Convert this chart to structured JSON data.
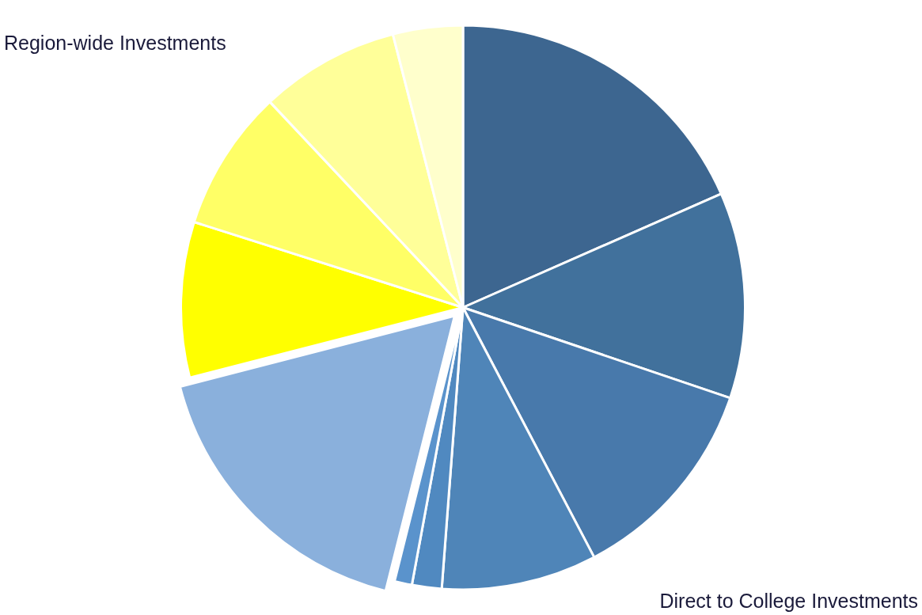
{
  "chart_data": {
    "type": "pie",
    "categories": [
      null,
      null,
      null,
      null,
      null,
      null,
      null,
      null,
      null,
      null,
      null
    ],
    "values": [
      18.4,
      11.8,
      12.1,
      8.9,
      1.7,
      1.0,
      17.1,
      8.9,
      8.1,
      8.0,
      4.0
    ],
    "colors": [
      "#3d6690",
      "#41719c",
      "#4879ab",
      "#4f85b8",
      "#5089c0",
      "#5a93cc",
      "#8ab0dc",
      "#ffff00",
      "#ffff66",
      "#ffff99",
      "#ffffcc"
    ],
    "annotations": [
      "Region-wide Investments",
      "Direct to College Investments"
    ],
    "legend": false
  }
}
